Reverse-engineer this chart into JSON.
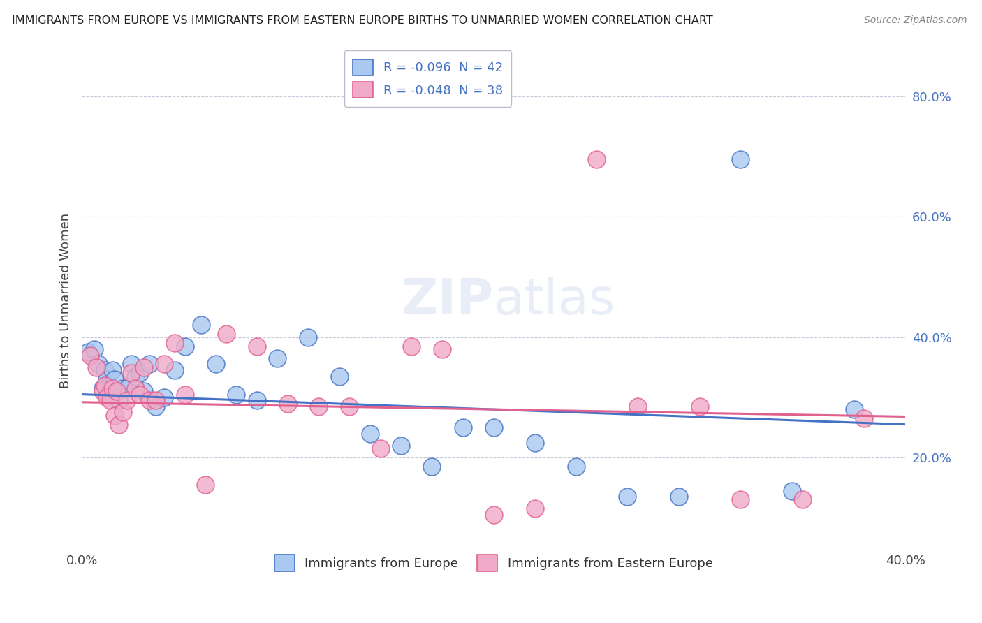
{
  "title": "IMMIGRANTS FROM EUROPE VS IMMIGRANTS FROM EASTERN EUROPE BIRTHS TO UNMARRIED WOMEN CORRELATION CHART",
  "source": "Source: ZipAtlas.com",
  "ylabel": "Births to Unmarried Women",
  "legend1_label": "R = -0.096  N = 42",
  "legend2_label": "R = -0.048  N = 38",
  "legend1_bottom": "Immigrants from Europe",
  "legend2_bottom": "Immigrants from Eastern Europe",
  "color_blue": "#aac8f0",
  "color_pink": "#f0aac8",
  "line_blue": "#4472c4",
  "line_pink": "#e06090",
  "text_blue": "#4472c4",
  "background": "#ffffff",
  "grid_color": "#c8c8d8",
  "xlim": [
    0.0,
    0.4
  ],
  "ylim": [
    0.05,
    0.87
  ],
  "yticks": [
    0.2,
    0.4,
    0.6,
    0.8
  ],
  "ytick_labels": [
    "20.0%",
    "40.0%",
    "60.0%",
    "80.0%"
  ],
  "blue_x": [
    0.003,
    0.006,
    0.008,
    0.01,
    0.011,
    0.012,
    0.013,
    0.014,
    0.015,
    0.016,
    0.017,
    0.018,
    0.02,
    0.022,
    0.024,
    0.026,
    0.028,
    0.03,
    0.033,
    0.036,
    0.04,
    0.045,
    0.05,
    0.058,
    0.065,
    0.075,
    0.085,
    0.095,
    0.11,
    0.125,
    0.14,
    0.155,
    0.17,
    0.185,
    0.2,
    0.22,
    0.24,
    0.265,
    0.29,
    0.32,
    0.345,
    0.375
  ],
  "blue_y": [
    0.375,
    0.38,
    0.355,
    0.315,
    0.345,
    0.33,
    0.32,
    0.315,
    0.345,
    0.33,
    0.31,
    0.295,
    0.315,
    0.315,
    0.355,
    0.335,
    0.34,
    0.31,
    0.355,
    0.285,
    0.3,
    0.345,
    0.385,
    0.42,
    0.355,
    0.305,
    0.295,
    0.365,
    0.4,
    0.335,
    0.24,
    0.22,
    0.185,
    0.25,
    0.25,
    0.225,
    0.185,
    0.135,
    0.135,
    0.695,
    0.145,
    0.28
  ],
  "pink_x": [
    0.004,
    0.007,
    0.01,
    0.011,
    0.012,
    0.014,
    0.015,
    0.016,
    0.017,
    0.018,
    0.02,
    0.022,
    0.024,
    0.026,
    0.028,
    0.03,
    0.033,
    0.036,
    0.04,
    0.045,
    0.05,
    0.06,
    0.07,
    0.085,
    0.1,
    0.115,
    0.13,
    0.145,
    0.16,
    0.175,
    0.2,
    0.22,
    0.25,
    0.27,
    0.3,
    0.32,
    0.35,
    0.38
  ],
  "pink_y": [
    0.37,
    0.35,
    0.31,
    0.32,
    0.3,
    0.295,
    0.315,
    0.27,
    0.31,
    0.255,
    0.275,
    0.295,
    0.34,
    0.315,
    0.305,
    0.35,
    0.295,
    0.295,
    0.355,
    0.39,
    0.305,
    0.155,
    0.405,
    0.385,
    0.29,
    0.285,
    0.285,
    0.215,
    0.385,
    0.38,
    0.105,
    0.115,
    0.695,
    0.285,
    0.285,
    0.13,
    0.13,
    0.265
  ]
}
